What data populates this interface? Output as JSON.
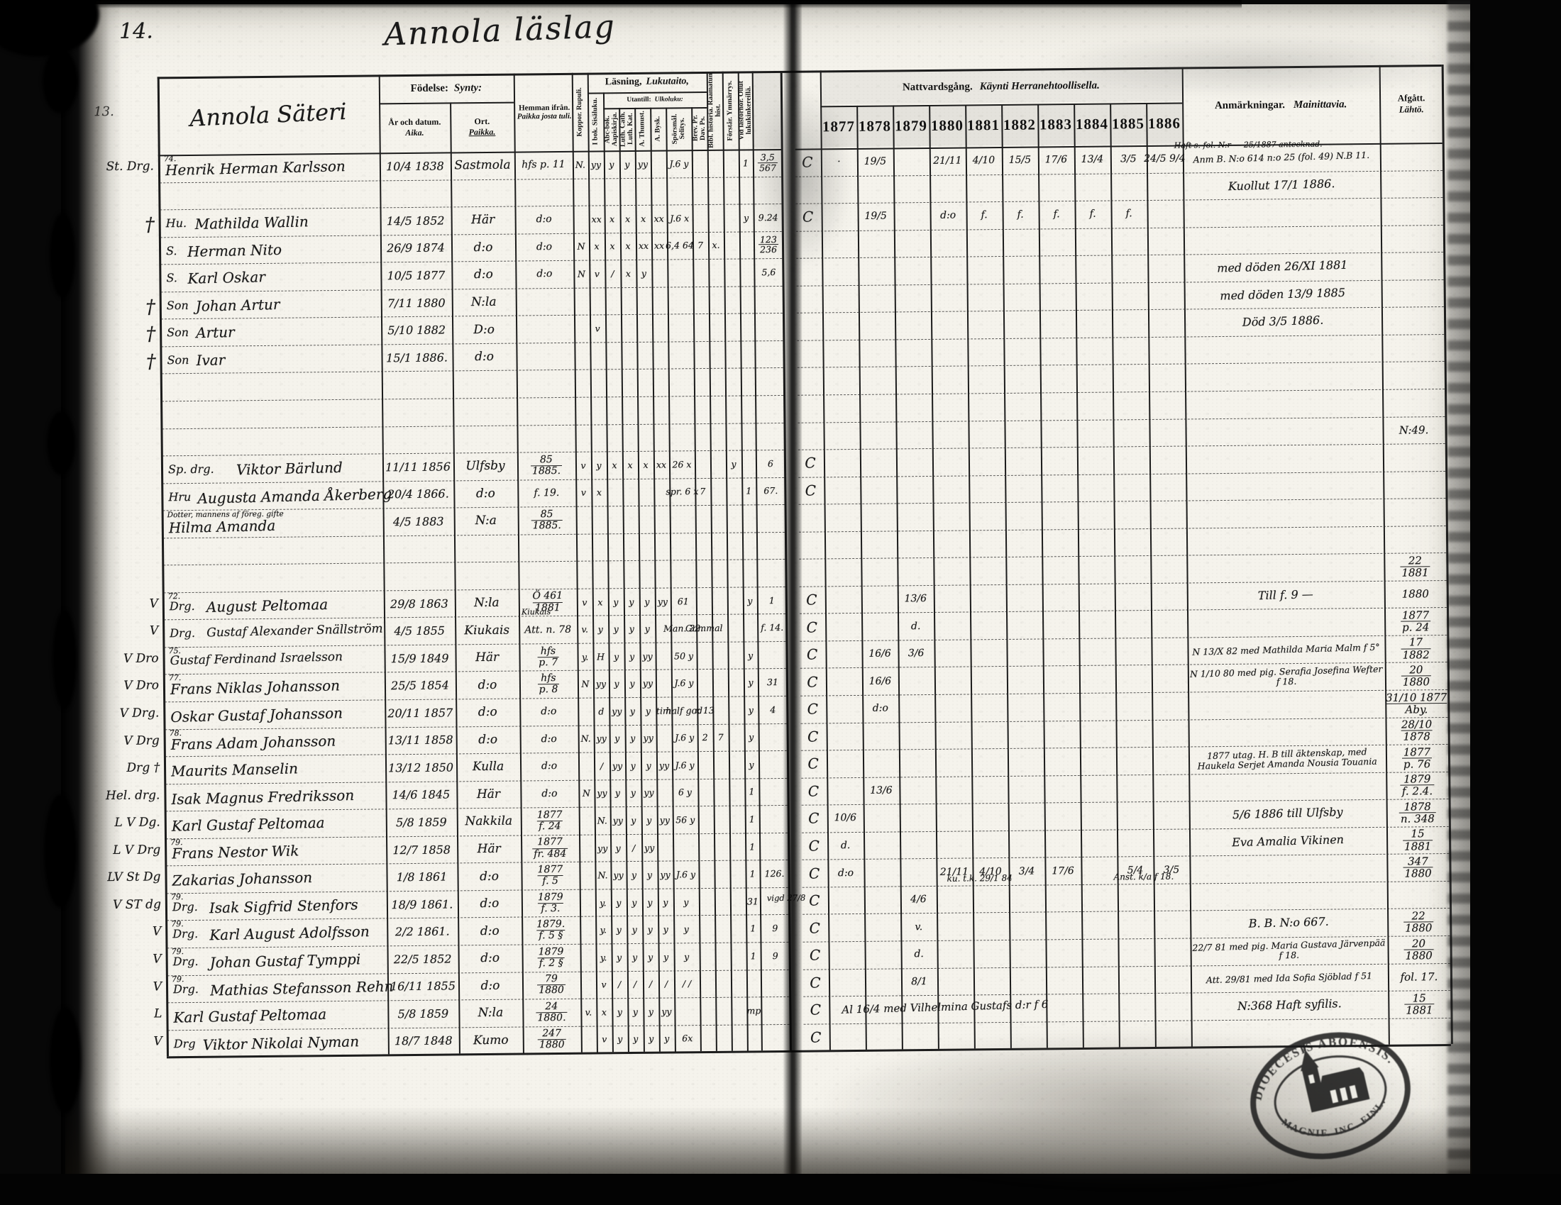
{
  "page": {
    "number": "14.",
    "margin_note": "13.",
    "title": "Annola läslag"
  },
  "table": {
    "group_title": "Annola Säteri",
    "headers": {
      "fodelse_sv": "Födelse:",
      "fodelse_fi": "Synty:",
      "datum_sv": "År och datum.",
      "datum_fi": "Aika.",
      "ort_sv": "Ort.",
      "ort_fi": "Paikka.",
      "hemman_sv": "Hemman ifrån.",
      "hemman_fi": "Paikka josta tuli.",
      "koppor": "Koppor. Rupuli.",
      "lasning_sv": "Läsning,",
      "lasning_fi": "Lukutaito,",
      "ibok": "I bok. Sisäluku.",
      "utantill_sv": "Utantill:",
      "utantill_fi": "Ulkoluku:",
      "abc": "Abc-bok. Aapiskirja.",
      "luth": "Luth. Cath. Luth. Kat.",
      "thun": "A. Thunust.",
      "bysk": "A. Bysk.",
      "sel": "Spörsmål. Selitys.",
      "dav": "Brev. Pr. Dav. Ps.",
      "bib": "Bibl. historia. Raamatun hist.",
      "forstar": "Förstår. Ymmärrys.",
      "kinkerit": "Vid läsförhör. Ollut lukukinkereillä.",
      "natt_sv": "Nattvardsgång.",
      "natt_fi": "Käynti Herranehtoollisella.",
      "anm_sv": "Anmärkningar.",
      "anm_fi": "Mainittavia.",
      "afg_sv": "Afgått.",
      "afg_fi": "Lähtö."
    },
    "years": [
      "1877",
      "1878",
      "1879",
      "1880",
      "1881",
      "1882",
      "1883",
      "1884",
      "1885",
      "1886"
    ]
  },
  "rows": [
    {
      "mark": "St. Drg.",
      "sup": "74.",
      "name": "Henrik Herman Karlsson",
      "birth": "10/4 1838",
      "ort": "Sastmola",
      "hem": "hfs p. 11",
      "cells": {
        "kop": "N.",
        "ibok": "yy",
        "abc": "y",
        "luth": "y",
        "thun": "yy",
        "sel": "J.6 y",
        "kin": "1",
        "ref": "3,5|567"
      },
      "c": "C",
      "yr": {
        "1877": "·",
        "1878": "19/5",
        "1880": "21/11",
        "1881": "4/10",
        "1882": "15/5",
        "1883": "17/6",
        "1884": "13/4",
        "1885": "3/5",
        "1886": "24/5 9/4"
      },
      "anm_small": "Haft s. fol. N:r — 25/1887 antecknad.",
      "anm": "Anm B. N:o 614 n:o 25 (fol. 49) N.B 11."
    },
    {
      "anm": "Kuollut 17/1 1886."
    },
    {
      "mark": "†",
      "pre": "Hu.",
      "name": "Mathilda Wallin",
      "birth": "14/5 1852",
      "ort": "Här",
      "hem": "d:o",
      "cells": {
        "ibok": "xx",
        "abc": "x",
        "luth": "x",
        "thun": "x",
        "bysk": "xx",
        "sel": "J.6 x",
        "kin": "y",
        "ref": "9.24"
      },
      "c": "C",
      "yr": {
        "1878": "19/5",
        "1880": "d:o",
        "1881": "f.",
        "1882": "f.",
        "1883": "f.",
        "1884": "f.",
        "1885": "f."
      }
    },
    {
      "pre": "S.",
      "name": "Herman Nito",
      "birth": "26/9 1874",
      "ort": "d:o",
      "hem": "d:o",
      "cells": {
        "kop": "N",
        "ibok": "x",
        "abc": "x",
        "luth": "x",
        "thun": "xx",
        "bysk": "xx",
        "sel": "6,4 64",
        "dav": "7",
        "bib": "x.",
        "ref": "123|236"
      }
    },
    {
      "pre": "S.",
      "name": "Karl Oskar",
      "birth": "10/5 1877",
      "ort": "d:o",
      "hem": "d:o",
      "cells": {
        "kop": "N",
        "ibok": "v",
        "abc": "/",
        "luth": "x",
        "thun": "y",
        "ref": "5,6"
      },
      "anm": "med döden 26/XI 1881"
    },
    {
      "mark": "†",
      "pre": "Son",
      "name": "Johan Artur",
      "birth": "7/11 1880",
      "ort": "N:la",
      "anm": "med döden 13/9 1885"
    },
    {
      "mark": "†",
      "pre": "Son",
      "name": "Artur",
      "birth": "5/10 1882",
      "ort": "D:o",
      "cells": {
        "ibok": "v"
      },
      "anm": "Död 3/5 1886."
    },
    {
      "mark": "†",
      "pre": "Son",
      "name": "Ivar",
      "birth": "15/1 1886.",
      "ort": "d:o"
    },
    {},
    {},
    {
      "afg": "N:49."
    },
    {
      "pre": "Sp. drg.",
      "name": "Viktor Bärlund",
      "birth": "11/11 1856",
      "ort": "Ulfsby",
      "hem": "85|1885.",
      "cells": {
        "kop": "v",
        "ibok": "y",
        "abc": "x",
        "luth": "x",
        "thun": "x",
        "bysk": "xx",
        "sel": "26 x",
        "for": "y",
        "ref": "6"
      },
      "c": "C"
    },
    {
      "pre": "Hru",
      "name": "Augusta Amanda Åkerberg",
      "birth": "20/4 1866.",
      "ort": "d:o",
      "hem": "f. 19.",
      "cells": {
        "kop": "v",
        "ibok": "x",
        "sel": "spr. 6 x",
        "dav": "7",
        "kin": "1",
        "ref": "67."
      },
      "c": "C"
    },
    {
      "pre": "Dotter, mannens af föreg. gifte",
      "name": "Hilma Amanda",
      "birth": "4/5 1883",
      "ort": "N:a",
      "hem": "85|1885."
    },
    {},
    {
      "afg": "22|1881"
    },
    {
      "mark": "V",
      "sup": "72.",
      "pre": "Drg.",
      "name": "August Peltomaa",
      "birth": "29/8 1863",
      "ort": "N:la",
      "hem": "Ö 461|1881",
      "hem2": "Kiukais",
      "cells": {
        "kop": "v",
        "ibok": "x",
        "abc": "y",
        "luth": "y",
        "thun": "y",
        "bysk": "yy",
        "sel": "61",
        "kin": "y",
        "ref": "1"
      },
      "c": "C",
      "yr": {
        "1879": "13/6"
      },
      "anm": "Till f. 9 —",
      "afg": "1880"
    },
    {
      "mark": "V",
      "pre": "Drg.",
      "name": "Gustaf Alexander Snällström",
      "birth": "4/5 1855",
      "ort": "Kiukais",
      "hem": "Att. n. 78",
      "cells": {
        "kop": "v.",
        "ibok": "y",
        "abc": "y",
        "luth": "y",
        "thun": "y",
        "sel": "Man. 32.",
        "dav": "Gammal",
        "ref": "f. 14."
      },
      "c": "C",
      "yr": {
        "1879": "d."
      },
      "afg": "1877|p. 24"
    },
    {
      "mark": "V Dro",
      "sup": "75.",
      "name": "Gustaf Ferdinand Israelsson",
      "birth": "15/9 1849",
      "ort": "Här",
      "hem": "hfs|p. 7",
      "cells": {
        "kop": "y.",
        "ibok": "H",
        "abc": "y",
        "luth": "y",
        "thun": "yy",
        "sel": "50 y",
        "kin": "y"
      },
      "c": "C",
      "yr": {
        "1878": "16/6",
        "1879": "3/6"
      },
      "anm": "N 13/X 82 med Mathilda Maria Malm f 5°",
      "afg": "17|1882"
    },
    {
      "mark": "V Dro",
      "sup": "77.",
      "name": "Frans Niklas Johansson",
      "birth": "25/5 1854",
      "ort": "d:o",
      "hem": "hfs|p. 8",
      "cells": {
        "kop": "N",
        "ibok": "yy",
        "abc": "y",
        "luth": "y",
        "thun": "yy",
        "sel": "J.6 y",
        "kin": "y",
        "ref": "31"
      },
      "c": "C",
      "yr": {
        "1878": "16/6"
      },
      "anm": "N 1/10 80 med pig. Serafia Josefina Wefter f 18.",
      "afg": "20|1880"
    },
    {
      "mark": "V Drg.",
      "name": "Oskar Gustaf Johansson",
      "birth": "20/11 1857",
      "ort": "d:o",
      "hem": "d:o",
      "cells": {
        "ibok": "d",
        "abc": "yy",
        "luth": "y",
        "thun": "y",
        "bysk": "tim",
        "sel": "half god",
        "dav": "x 13",
        "kin": "y",
        "ref": "4"
      },
      "c": "C",
      "yr": {
        "1878": "d:o"
      },
      "afg": "31/10 1877|Aby."
    },
    {
      "mark": "V Drg",
      "sup": "78.",
      "name": "Frans Adam Johansson",
      "birth": "13/11 1858",
      "ort": "d:o",
      "hem": "d:o",
      "cells": {
        "kop": "N.",
        "ibok": "yy",
        "abc": "y",
        "luth": "y",
        "thun": "yy",
        "sel": "J.6 y",
        "dav": "2",
        "bib": "7",
        "kin": "y"
      },
      "c": "C",
      "afg": "28/10|1878"
    },
    {
      "mark": "Drg †",
      "name": "Maurits Manselin",
      "birth": "13/12 1850",
      "ort": "Kulla",
      "hem": "d:o",
      "cells": {
        "ibok": "/",
        "abc": "yy",
        "luth": "y",
        "thun": "y",
        "bysk": "yy",
        "sel": "J.6 y",
        "kin": "y"
      },
      "c": "C",
      "anm": "1877 utag. H. B till äktenskap, med Haukela Serjet Amanda Nousia Touania",
      "afg": "1877|p. 76"
    },
    {
      "mark": "Hel. drg.",
      "name": "Isak Magnus Fredriksson",
      "birth": "14/6 1845",
      "ort": "Här",
      "hem": "d:o",
      "cells": {
        "kop": "N",
        "ibok": "yy",
        "abc": "y",
        "luth": "y",
        "thun": "yy",
        "sel": "6 y",
        "kin": "1"
      },
      "c": "C",
      "yr": {
        "1878": "13/6"
      },
      "afg": "1879|f. 2.4."
    },
    {
      "mark": "L V Dg.",
      "name": "Karl Gustaf Peltomaa",
      "birth": "5/8 1859",
      "ort": "Nakkila",
      "hem": "1877|f. 24",
      "cells": {
        "ibok": "N.",
        "abc": "yy",
        "luth": "y",
        "thun": "y",
        "bysk": "yy",
        "sel": "56 y",
        "kin": "1"
      },
      "c": "C",
      "yr": {
        "1877": "10/6"
      },
      "anm": "5/6 1886 till Ulfsby",
      "afg": "1878|n. 348"
    },
    {
      "mark": "L V Drg",
      "sup": "79.",
      "name": "Frans Nestor Wik",
      "birth": "12/7 1858",
      "ort": "Här",
      "hem": "1877|fr. 484",
      "cells": {
        "ibok": "yy",
        "abc": "y",
        "luth": "/",
        "thun": "yy",
        "kin": "1"
      },
      "c": "C",
      "yr": {
        "1877": "d."
      },
      "anm": "Eva Amalia Vikinen",
      "afg": "15|1881"
    },
    {
      "mark": "LV St Dg",
      "name": "Zakarias Johansson",
      "birth": "1/8 1861",
      "ort": "d:o",
      "hem": "1877|f. 5",
      "cells": {
        "ibok": "N.",
        "abc": "yy",
        "luth": "y",
        "thun": "y",
        "bysk": "yy",
        "sel": "J.6 y",
        "kin": "1",
        "ref": "126."
      },
      "c": "C",
      "yr": {
        "1877": "d:o",
        "1880": "21/11",
        "1881": "4/10",
        "1882": "3/4",
        "1883": "17/6",
        "1885": "5/4",
        "1886": "3/5"
      },
      "note1": "ku. t.k. 29/1 84",
      "note2": "Anst. k/a f 18.",
      "afg": "347|1880"
    },
    {
      "mark": "V ST dg",
      "sup": "79.",
      "pre": "Drg.",
      "name": "Isak Sigfrid Stenfors",
      "birth": "18/9 1861.",
      "ort": "d:o",
      "hem": "1879|f. 3.",
      "cells": {
        "ibok": "y.",
        "abc": "y",
        "luth": "y",
        "thun": "y",
        "bysk": "y",
        "sel": "y",
        "kin": "31"
      },
      "c": "C",
      "yr": {
        "1879": "4/6"
      },
      "foldnote": "vigd 27/8"
    },
    {
      "mark": "V",
      "sup": "79.",
      "pre": "Drg.",
      "name": "Karl August Adolfsson",
      "birth": "2/2 1861.",
      "ort": "d:o",
      "hem": "1879.|f. 5 §",
      "cells": {
        "ibok": "y.",
        "abc": "y",
        "luth": "y",
        "thun": "y",
        "bysk": "y",
        "sel": "y",
        "kin": "1",
        "ref": "9"
      },
      "c": "C",
      "yr": {
        "1879": "v."
      },
      "anm": "B. B. N:o 667.",
      "afg": "22|1880"
    },
    {
      "mark": "V",
      "sup": "79.",
      "pre": "Drg.",
      "name": "Johan Gustaf Tymppi",
      "birth": "22/5 1852",
      "ort": "d:o",
      "hem": "1879|f. 2 §",
      "cells": {
        "ibok": "y.",
        "abc": "y",
        "luth": "y",
        "thun": "y",
        "bysk": "y",
        "sel": "y",
        "kin": "1",
        "ref": "9"
      },
      "c": "C",
      "yr": {
        "1879": "d."
      },
      "anm": "22/7 81 med pig. Maria Gustava Järvenpää f 18.",
      "afg": "20|1880"
    },
    {
      "mark": "V",
      "sup": "79.",
      "pre": "Drg.",
      "name": "Mathias Stefansson Rehn",
      "birth": "16/11 1855",
      "ort": "d:o",
      "hem": "79|1880",
      "cells": {
        "ibok": "v",
        "abc": "/",
        "luth": "/",
        "thun": "/",
        "bysk": "/",
        "sel": "/ /"
      },
      "c": "C",
      "yr": {
        "1879": "8/1"
      },
      "anm": "Att. 29/81 med Ida Sofia Sjöblad f 51",
      "afg": "fol. 17."
    },
    {
      "mark": "L",
      "name": "Karl Gustaf Peltomaa",
      "birth": "5/8 1859",
      "ort": "N:la",
      "hem": "24|1880.",
      "cells": {
        "kop": "v.",
        "ibok": "x",
        "abc": "y",
        "luth": "y",
        "thun": "y",
        "bysk": "yy",
        "kin": "mp"
      },
      "c": "C",
      "spannote": "Al 16/4 med Vilhelmina Gustafs d:r f 6",
      "anm": "N:368 Haft syfilis.",
      "afg": "15|1881"
    },
    {
      "mark": "V",
      "pre": "Drg",
      "name": "Viktor Nikolai Nyman",
      "birth": "18/7 1848",
      "ort": "Kumo",
      "hem": "247|1880",
      "cells": {
        "ibok": "v",
        "abc": "y",
        "luth": "y",
        "thun": "y",
        "bysk": "y",
        "sel": "6x"
      },
      "c": "C"
    }
  ],
  "stamp": {
    "top": "DIOECESIS ABOENSIS.",
    "bottom": "MAGNIF. INC. FINL.",
    "icon": "church"
  }
}
